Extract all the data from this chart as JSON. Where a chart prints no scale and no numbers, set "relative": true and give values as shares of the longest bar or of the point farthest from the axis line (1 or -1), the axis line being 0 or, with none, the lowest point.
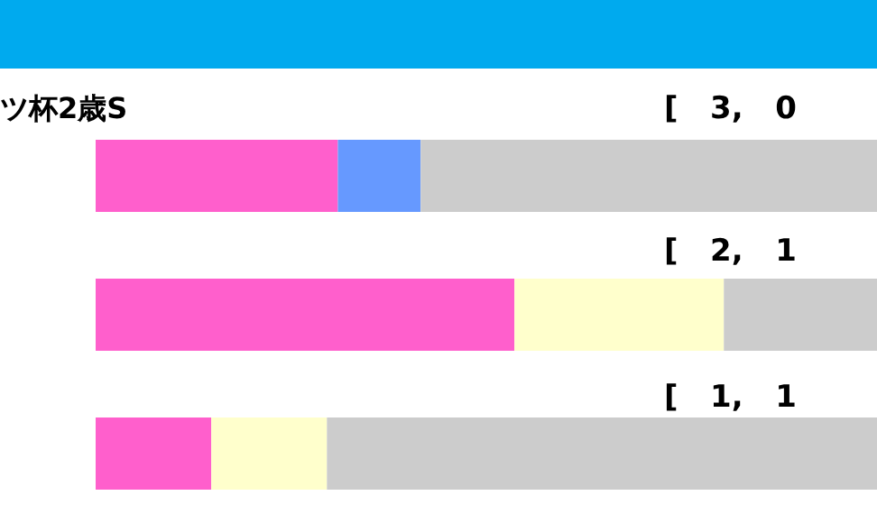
{
  "chart_data": {
    "type": "bar",
    "orientation": "horizontal",
    "stacked": true,
    "relative": true,
    "categories": [
      "ツ杯2歳S",
      null,
      null
    ],
    "series": [
      {
        "colors": [
          "#ff5fcc",
          "#ff5fcc",
          "#ff5fcc"
        ],
        "values": [
          0.31,
          0.536,
          0.148
        ]
      },
      {
        "colors": [
          "#6699ff",
          "#ffffcc",
          "#ffffcc"
        ],
        "values": [
          0.106,
          0.268,
          0.148
        ]
      },
      {
        "colors": [
          "#cccccc",
          "#cccccc",
          "#cccccc"
        ],
        "values": [
          0.584,
          0.196,
          0.704
        ]
      }
    ],
    "annotations": [
      "[ 3, 0",
      "[ 2, 1",
      "[ 1, 1"
    ]
  }
}
